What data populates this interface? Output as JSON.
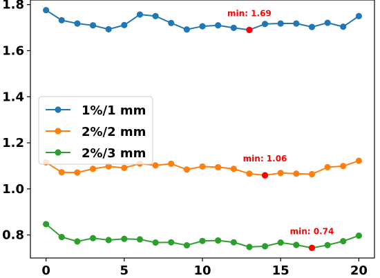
{
  "chart_data": {
    "type": "line",
    "title": "",
    "xlabel": "",
    "ylabel": "",
    "xlim": [
      -1,
      21
    ],
    "ylim": [
      0.7,
      1.82
    ],
    "xticks": [
      0,
      5,
      10,
      15,
      20
    ],
    "xtick_labels": [
      "0",
      "5",
      "10",
      "15",
      "20"
    ],
    "yticks": [
      0.8,
      1.0,
      1.2,
      1.4,
      1.6,
      1.8
    ],
    "ytick_labels": [
      "0.8",
      "1.0",
      "1.2",
      "1.4",
      "1.6",
      "1.8"
    ],
    "grid": false,
    "legend_position": "center-left",
    "x": [
      0,
      1,
      2,
      3,
      4,
      5,
      6,
      7,
      8,
      9,
      10,
      11,
      12,
      13,
      14,
      15,
      16,
      17,
      18,
      19,
      20
    ],
    "series": [
      {
        "name": "1%/1 mm",
        "color": "#1f77b4",
        "values": [
          1.776,
          1.732,
          1.718,
          1.71,
          1.693,
          1.711,
          1.757,
          1.75,
          1.72,
          1.692,
          1.706,
          1.71,
          1.699,
          1.69,
          1.716,
          1.718,
          1.718,
          1.703,
          1.721,
          1.704,
          1.75
        ],
        "min_index": 13,
        "min_label": "min: 1.69"
      },
      {
        "name": "2%/2 mm",
        "color": "#ff7f0e",
        "values": [
          1.115,
          1.072,
          1.071,
          1.087,
          1.098,
          1.091,
          1.11,
          1.102,
          1.109,
          1.084,
          1.097,
          1.094,
          1.087,
          1.066,
          1.059,
          1.069,
          1.066,
          1.064,
          1.094,
          1.099,
          1.122
        ],
        "min_index": 14,
        "min_label": "min: 1.06"
      },
      {
        "name": "2%/3 mm",
        "color": "#2ca02c",
        "values": [
          0.847,
          0.791,
          0.772,
          0.786,
          0.778,
          0.783,
          0.781,
          0.767,
          0.768,
          0.755,
          0.774,
          0.776,
          0.768,
          0.748,
          0.751,
          0.767,
          0.757,
          0.744,
          0.756,
          0.773,
          0.797
        ],
        "min_index": 17,
        "min_label": "min: 0.74"
      }
    ],
    "min_marker_color": "#ff0000"
  }
}
